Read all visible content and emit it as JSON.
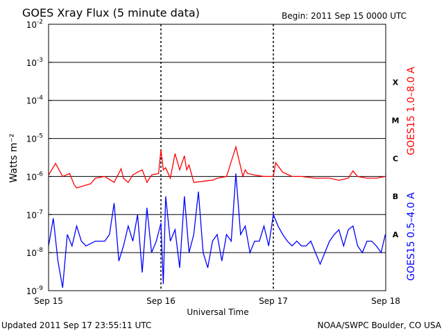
{
  "header": {
    "title": "GOES Xray Flux (5 minute data)",
    "begin": "Begin:  2011 Sep 15 0000 UTC"
  },
  "footer": {
    "updated": "Updated 2011 Sep 17 23:55:11 UTC",
    "credit": "NOAA/SWPC Boulder, CO USA"
  },
  "chart_data": {
    "type": "line",
    "title": "GOES Xray Flux (5 minute data)",
    "xlabel": "Universal Time",
    "ylabel": "Watts m⁻²",
    "y_scale": "log",
    "ylim": [
      1e-09,
      0.01
    ],
    "xlim": [
      "2011-09-15 00:00",
      "2011-09-18 00:00"
    ],
    "grid": true,
    "x_ticks": [
      "Sep 15",
      "Sep 16",
      "Sep 17",
      "Sep 18"
    ],
    "y_ticks": [
      {
        "value": 1e-09,
        "base": "10",
        "exp": "-9"
      },
      {
        "value": 1e-08,
        "base": "10",
        "exp": "-8"
      },
      {
        "value": 1e-07,
        "base": "10",
        "exp": "-7"
      },
      {
        "value": 1e-06,
        "base": "10",
        "exp": "-6"
      },
      {
        "value": 1e-05,
        "base": "10",
        "exp": "-5"
      },
      {
        "value": 0.0001,
        "base": "10",
        "exp": "-4"
      },
      {
        "value": 0.001,
        "base": "10",
        "exp": "-3"
      },
      {
        "value": 0.01,
        "base": "10",
        "exp": "-2"
      }
    ],
    "flare_classes": [
      {
        "label": "A",
        "value": 3e-08
      },
      {
        "label": "B",
        "value": 3e-07
      },
      {
        "label": "C",
        "value": 3e-06
      },
      {
        "label": "M",
        "value": 3e-05
      },
      {
        "label": "X",
        "value": 0.0003
      }
    ],
    "series": [
      {
        "name": "GOES15 1.0–8.0 A",
        "color": "#ff0000",
        "x": [
          "2011-09-15 00:00",
          "2011-09-15 01:30",
          "2011-09-15 03:00",
          "2011-09-15 04:30",
          "2011-09-15 05:30",
          "2011-09-15 06:00",
          "2011-09-15 09:00",
          "2011-09-15 10:00",
          "2011-09-15 12:00",
          "2011-09-15 14:00",
          "2011-09-15 15:30",
          "2011-09-15 16:00",
          "2011-09-15 17:00",
          "2011-09-15 18:00",
          "2011-09-15 19:00",
          "2011-09-15 20:00",
          "2011-09-15 21:00",
          "2011-09-15 22:00",
          "2011-09-15 23:30",
          "2011-09-16 00:00",
          "2011-09-16 00:30",
          "2011-09-16 01:00",
          "2011-09-16 02:00",
          "2011-09-16 03:00",
          "2011-09-16 04:00",
          "2011-09-16 05:00",
          "2011-09-16 05:30",
          "2011-09-16 06:00",
          "2011-09-16 07:00",
          "2011-09-16 11:00",
          "2011-09-16 12:00",
          "2011-09-16 14:00",
          "2011-09-16 16:00",
          "2011-09-16 17:30",
          "2011-09-16 18:00",
          "2011-09-16 18:30",
          "2011-09-16 20:00",
          "2011-09-16 22:00",
          "2011-09-17 00:00",
          "2011-09-17 00:30",
          "2011-09-17 02:00",
          "2011-09-17 04:00",
          "2011-09-17 06:00",
          "2011-09-17 09:00",
          "2011-09-17 12:00",
          "2011-09-17 14:00",
          "2011-09-17 16:00",
          "2011-09-17 17:00",
          "2011-09-17 18:00",
          "2011-09-17 20:00",
          "2011-09-17 22:00",
          "2011-09-17 23:55"
        ],
        "values": [
          1.1e-06,
          2.2e-06,
          1e-06,
          1.2e-06,
          6e-07,
          5e-07,
          6.5e-07,
          9e-07,
          1e-06,
          7e-07,
          1.6e-06,
          9e-07,
          7e-07,
          1.1e-06,
          1.3e-06,
          1.5e-06,
          7e-07,
          1.1e-06,
          1.2e-06,
          5e-06,
          1.5e-06,
          1.7e-06,
          9e-07,
          4e-06,
          1.5e-06,
          3.5e-06,
          1.5e-06,
          2e-06,
          7e-07,
          8e-07,
          9e-07,
          1e-06,
          6e-06,
          1e-06,
          1.5e-06,
          1.2e-06,
          1.1e-06,
          1e-06,
          1e-06,
          2.3e-06,
          1.3e-06,
          1e-06,
          1e-06,
          9e-07,
          9e-07,
          8e-07,
          9e-07,
          1.4e-06,
          1e-06,
          9e-07,
          9e-07,
          1e-06
        ]
      },
      {
        "name": "GOES15 0.5–4.0 A",
        "color": "#0000ff",
        "x": [
          "2011-09-15 00:00",
          "2011-09-15 01:00",
          "2011-09-15 02:00",
          "2011-09-15 03:00",
          "2011-09-15 04:00",
          "2011-09-15 05:00",
          "2011-09-15 06:00",
          "2011-09-15 07:00",
          "2011-09-15 08:00",
          "2011-09-15 10:00",
          "2011-09-15 12:00",
          "2011-09-15 13:00",
          "2011-09-15 14:00",
          "2011-09-15 15:00",
          "2011-09-15 16:00",
          "2011-09-15 17:00",
          "2011-09-15 18:00",
          "2011-09-15 19:00",
          "2011-09-15 20:00",
          "2011-09-15 21:00",
          "2011-09-15 22:00",
          "2011-09-15 23:00",
          "2011-09-16 00:00",
          "2011-09-16 00:30",
          "2011-09-16 01:00",
          "2011-09-16 02:00",
          "2011-09-16 03:00",
          "2011-09-16 04:00",
          "2011-09-16 05:00",
          "2011-09-16 06:00",
          "2011-09-16 07:00",
          "2011-09-16 08:00",
          "2011-09-16 09:00",
          "2011-09-16 10:00",
          "2011-09-16 11:00",
          "2011-09-16 12:00",
          "2011-09-16 13:00",
          "2011-09-16 14:00",
          "2011-09-16 15:00",
          "2011-09-16 16:00",
          "2011-09-16 17:00",
          "2011-09-16 18:00",
          "2011-09-16 19:00",
          "2011-09-16 20:00",
          "2011-09-16 21:00",
          "2011-09-16 22:00",
          "2011-09-16 23:00",
          "2011-09-17 00:00",
          "2011-09-17 01:00",
          "2011-09-17 02:00",
          "2011-09-17 03:00",
          "2011-09-17 04:00",
          "2011-09-17 05:00",
          "2011-09-17 06:00",
          "2011-09-17 07:00",
          "2011-09-17 08:00",
          "2011-09-17 10:00",
          "2011-09-17 12:00",
          "2011-09-17 13:00",
          "2011-09-17 14:00",
          "2011-09-17 15:00",
          "2011-09-17 16:00",
          "2011-09-17 17:00",
          "2011-09-17 18:00",
          "2011-09-17 19:00",
          "2011-09-17 20:00",
          "2011-09-17 21:00",
          "2011-09-17 22:00",
          "2011-09-17 23:00",
          "2011-09-17 23:55"
        ],
        "values": [
          1.5e-08,
          8e-08,
          6e-09,
          1.2e-09,
          3e-08,
          1.5e-08,
          5e-08,
          2e-08,
          1.5e-08,
          2e-08,
          2e-08,
          3e-08,
          2e-07,
          6e-09,
          1.5e-08,
          5e-08,
          2e-08,
          1e-07,
          3e-09,
          1.5e-07,
          1e-08,
          2e-08,
          6e-08,
          1.5e-09,
          3e-07,
          2e-08,
          4e-08,
          4e-09,
          3e-07,
          1e-08,
          3e-08,
          4e-07,
          1e-08,
          4e-09,
          2e-08,
          3e-08,
          6e-09,
          3e-08,
          2e-08,
          1.2e-06,
          3e-08,
          5e-08,
          1e-08,
          2e-08,
          2e-08,
          5e-08,
          1.5e-08,
          1e-07,
          5e-08,
          3e-08,
          2e-08,
          1.5e-08,
          2e-08,
          1.5e-08,
          1.5e-08,
          2e-08,
          5e-09,
          2e-08,
          3e-08,
          4e-08,
          1.5e-08,
          4e-08,
          5e-08,
          1.5e-08,
          1e-08,
          2e-08,
          2e-08,
          1.5e-08,
          1e-08,
          3e-08
        ]
      }
    ]
  }
}
